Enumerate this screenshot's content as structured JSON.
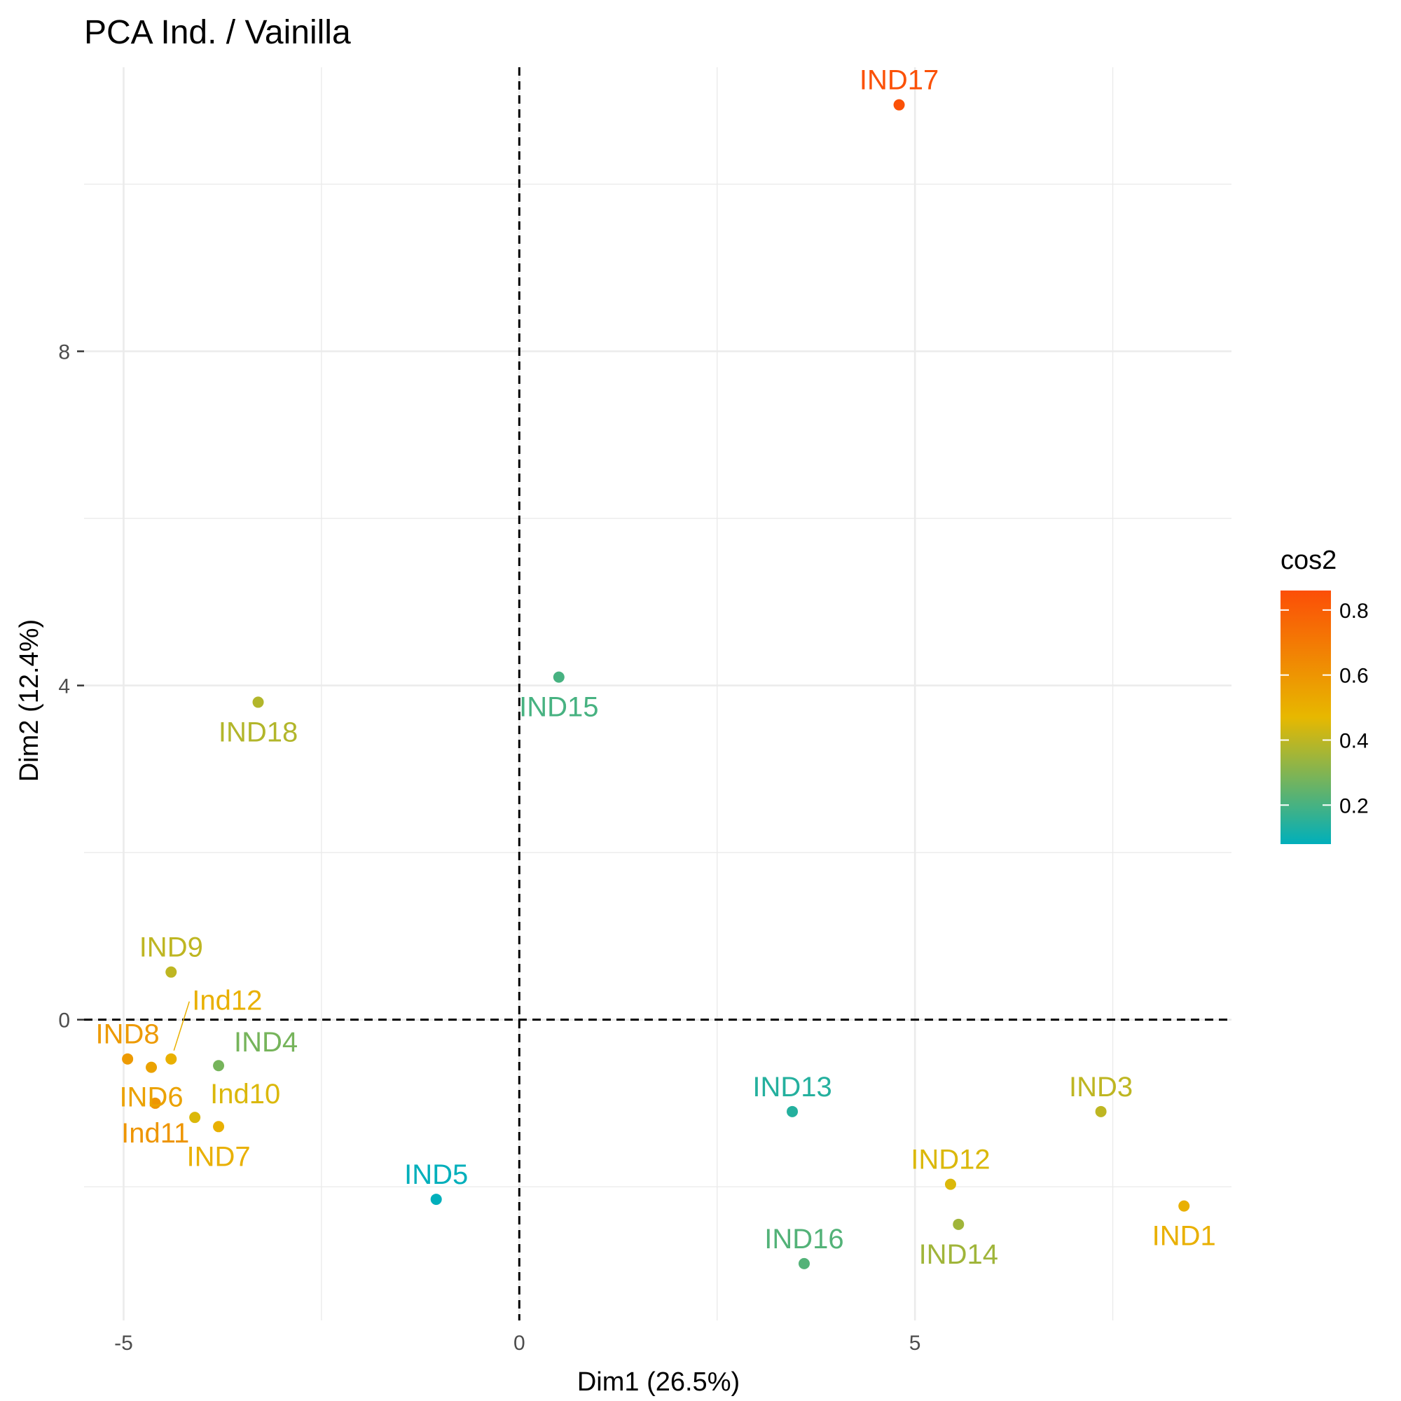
{
  "chart_data": {
    "type": "scatter",
    "title": "PCA Ind. / Vainilla",
    "xlabel": "Dim1 (26.5%)",
    "ylabel": "Dim2 (12.4%)",
    "xlim": [
      -5.5,
      9
    ],
    "ylim": [
      -3.6,
      11.4
    ],
    "x_ticks": [
      {
        "value": -5,
        "label": "-5"
      },
      {
        "value": 0,
        "label": "0"
      },
      {
        "value": 5,
        "label": "5"
      }
    ],
    "y_ticks": [
      {
        "value": 0,
        "label": "0"
      },
      {
        "value": 4,
        "label": "4"
      },
      {
        "value": 8,
        "label": "8"
      }
    ],
    "reference_lines": {
      "x": 0,
      "y": 0,
      "style": "dashed"
    },
    "grid": true,
    "color_scale": {
      "title": "cos2",
      "range": [
        0.08,
        0.86
      ],
      "ticks": [
        {
          "value": 0.2,
          "label": "0.2"
        },
        {
          "value": 0.4,
          "label": "0.4"
        },
        {
          "value": 0.6,
          "label": "0.6"
        },
        {
          "value": 0.8,
          "label": "0.8"
        }
      ],
      "colors": [
        "#00AFBB",
        "#E7B800",
        "#FC4E07"
      ],
      "legend_position": "right"
    },
    "points": [
      {
        "label": "IND17",
        "x": 4.8,
        "y": 10.95,
        "cos2": 0.85,
        "label_pos": "above"
      },
      {
        "label": "IND15",
        "x": 0.5,
        "y": 4.1,
        "cos2": 0.2,
        "label_pos": "below"
      },
      {
        "label": "IND18",
        "x": -3.3,
        "y": 3.8,
        "cos2": 0.38,
        "label_pos": "below"
      },
      {
        "label": "IND9",
        "x": -4.4,
        "y": 0.57,
        "cos2": 0.4,
        "label_pos": "above"
      },
      {
        "label": "Ind12",
        "x": -4.4,
        "y": -0.47,
        "cos2": 0.5,
        "label_pos": "above-right-leader"
      },
      {
        "label": "IND8",
        "x": -4.95,
        "y": -0.47,
        "cos2": 0.58,
        "label_pos": "above"
      },
      {
        "label": "IND4",
        "x": -3.8,
        "y": -0.55,
        "cos2": 0.28,
        "label_pos": "above-right"
      },
      {
        "label": "IND6",
        "x": -4.65,
        "y": -0.57,
        "cos2": 0.55,
        "label_pos": "below"
      },
      {
        "label": "Ind10",
        "x": -4.1,
        "y": -1.17,
        "cos2": 0.45,
        "label_pos": "above-right"
      },
      {
        "label": "Ind11",
        "x": -4.6,
        "y": -1.0,
        "cos2": 0.6,
        "label_pos": "below"
      },
      {
        "label": "IND7",
        "x": -3.8,
        "y": -1.28,
        "cos2": 0.5,
        "label_pos": "below"
      },
      {
        "label": "IND5",
        "x": -1.05,
        "y": -2.15,
        "cos2": 0.08,
        "label_pos": "above"
      },
      {
        "label": "IND13",
        "x": 3.45,
        "y": -1.1,
        "cos2": 0.14,
        "label_pos": "above"
      },
      {
        "label": "IND3",
        "x": 7.35,
        "y": -1.1,
        "cos2": 0.4,
        "label_pos": "above"
      },
      {
        "label": "IND12",
        "x": 5.45,
        "y": -1.97,
        "cos2": 0.45,
        "label_pos": "above"
      },
      {
        "label": "IND1",
        "x": 8.4,
        "y": -2.23,
        "cos2": 0.5,
        "label_pos": "below"
      },
      {
        "label": "IND14",
        "x": 5.55,
        "y": -2.45,
        "cos2": 0.35,
        "label_pos": "below"
      },
      {
        "label": "IND16",
        "x": 3.6,
        "y": -2.92,
        "cos2": 0.22,
        "label_pos": "above"
      }
    ]
  }
}
